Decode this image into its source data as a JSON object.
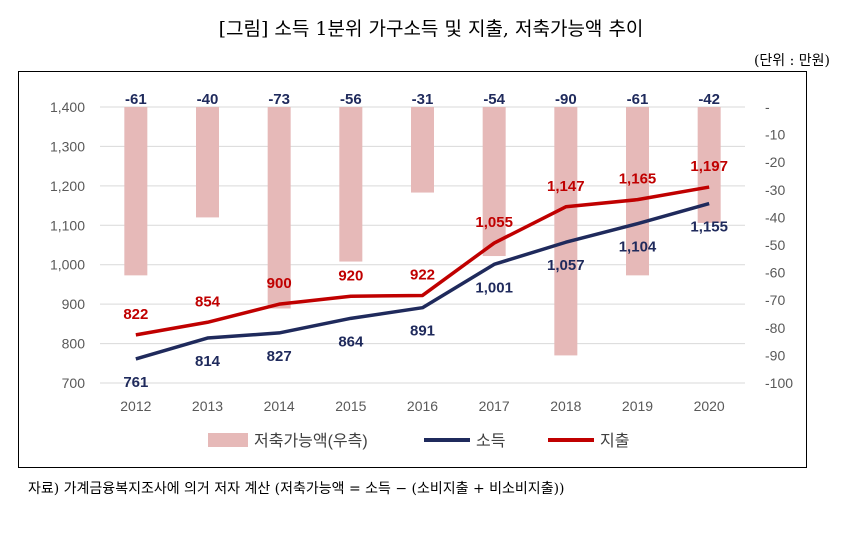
{
  "title": "[그림] 소득 1분위 가구소득 및 지출, 저축가능액 추이",
  "unit": "(단위 : 만원)",
  "source": "자료) 가계금융복지조사에 의거 저자 계산 (저축가능액 = 소득 − (소비지출 + 비소비지출))",
  "colors": {
    "bar": "#e6b9b8",
    "income": "#1f2a5c",
    "expense": "#c00000",
    "axis_text": "#595959",
    "grid": "#d9d9d9"
  },
  "chart_data": {
    "type": "bar+line",
    "categories": [
      "2012",
      "2013",
      "2014",
      "2015",
      "2016",
      "2017",
      "2018",
      "2019",
      "2020"
    ],
    "series": [
      {
        "name": "저축가능액(우측)",
        "type": "bar",
        "axis": "right",
        "values": [
          -61,
          -40,
          -73,
          -56,
          -31,
          -54,
          -90,
          -61,
          -42
        ]
      },
      {
        "name": "소득",
        "type": "line",
        "axis": "left",
        "values": [
          761,
          814,
          827,
          864,
          891,
          1001,
          1057,
          1104,
          1155
        ]
      },
      {
        "name": "지출",
        "type": "line",
        "axis": "left",
        "values": [
          822,
          854,
          900,
          920,
          922,
          1055,
          1147,
          1165,
          1197
        ]
      }
    ],
    "y_left": {
      "min": 700,
      "max": 1400,
      "ticks": [
        "700",
        "800",
        "900",
        "1,000",
        "1,100",
        "1,200",
        "1,300",
        "1,400"
      ]
    },
    "y_right": {
      "min": -100,
      "max": 0,
      "ticks": [
        "-",
        "-10",
        "-20",
        "-30",
        "-40",
        "-50",
        "-60",
        "-70",
        "-80",
        "-90",
        "-100"
      ]
    },
    "labels": {
      "savings": [
        "-61",
        "-40",
        "-73",
        "-56",
        "-31",
        "-54",
        "-90",
        "-61",
        "-42"
      ],
      "income": [
        "761",
        "814",
        "827",
        "864",
        "891",
        "1,001",
        "1,057",
        "1,104",
        "1,155"
      ],
      "expense": [
        "822",
        "854",
        "900",
        "920",
        "922",
        "1,055",
        "1,147",
        "1,165",
        "1,197"
      ]
    },
    "legend_position": "bottom",
    "grid": true
  }
}
